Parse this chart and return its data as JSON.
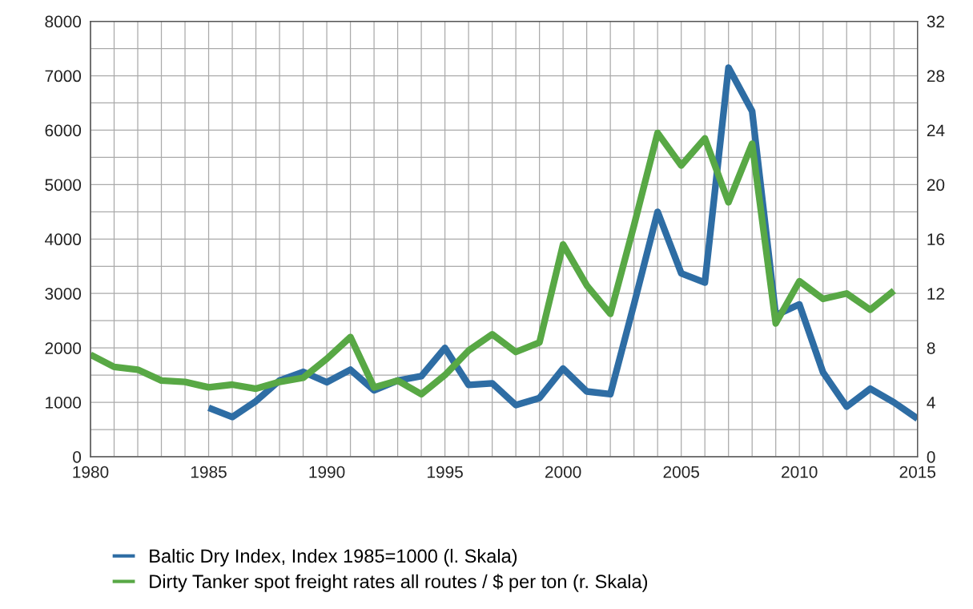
{
  "chart_data": {
    "type": "line",
    "x": [
      1980,
      1981,
      1982,
      1983,
      1984,
      1985,
      1986,
      1987,
      1988,
      1989,
      1990,
      1991,
      1992,
      1993,
      1994,
      1995,
      1996,
      1997,
      1998,
      1999,
      2000,
      2001,
      2002,
      2003,
      2004,
      2005,
      2006,
      2007,
      2008,
      2009,
      2010,
      2011,
      2012,
      2013,
      2014,
      2015
    ],
    "series": [
      {
        "name": "Baltic Dry Index, Index 1985=1000 (l. Skala)",
        "color": "#2e6da4",
        "values": [
          null,
          null,
          null,
          null,
          null,
          900,
          730,
          1020,
          1400,
          1560,
          1370,
          1600,
          1220,
          1400,
          1480,
          2000,
          1320,
          1350,
          950,
          1080,
          1620,
          1200,
          1150,
          2800,
          4500,
          3370,
          3200,
          7150,
          6350,
          2600,
          2800,
          1550,
          920,
          1250,
          1000,
          700
        ]
      },
      {
        "name": "Dirty Tanker spot freight rates all routes / $ per ton (r. Skala)",
        "color": "#58a845",
        "axis": "y2",
        "values": [
          7.5,
          6.6,
          6.4,
          5.6,
          5.5,
          5.1,
          5.3,
          5.0,
          5.5,
          5.8,
          7.2,
          8.8,
          5.1,
          5.6,
          4.6,
          6.0,
          7.8,
          9.0,
          7.7,
          8.4,
          15.6,
          12.6,
          10.5,
          17.0,
          23.8,
          21.4,
          23.4,
          18.7,
          23.0,
          9.8,
          12.9,
          11.6,
          12.0,
          10.8,
          12.2,
          null
        ]
      }
    ],
    "xlim": [
      1980,
      2015
    ],
    "xticks": [
      1980,
      {
        "value": 1981,
        "label": null
      },
      {
        "value": 1982,
        "label": null
      },
      {
        "value": 1983,
        "label": null
      },
      {
        "value": 1984,
        "label": null
      },
      1985,
      {
        "value": 1986,
        "label": null
      },
      {
        "value": 1987,
        "label": null
      },
      {
        "value": 1988,
        "label": null
      },
      {
        "value": 1989,
        "label": null
      },
      1990,
      {
        "value": 1991,
        "label": null
      },
      {
        "value": 1992,
        "label": null
      },
      {
        "value": 1993,
        "label": null
      },
      {
        "value": 1994,
        "label": null
      },
      1995,
      {
        "value": 1996,
        "label": null
      },
      {
        "value": 1997,
        "label": null
      },
      {
        "value": 1998,
        "label": null
      },
      {
        "value": 1999,
        "label": null
      },
      2000,
      {
        "value": 2001,
        "label": null
      },
      {
        "value": 2002,
        "label": null
      },
      {
        "value": 2003,
        "label": null
      },
      {
        "value": 2004,
        "label": null
      },
      2005,
      {
        "value": 2006,
        "label": null
      },
      {
        "value": 2007,
        "label": null
      },
      {
        "value": 2008,
        "label": null
      },
      {
        "value": 2009,
        "label": null
      },
      2010,
      {
        "value": 2011,
        "label": null
      },
      {
        "value": 2012,
        "label": null
      },
      {
        "value": 2013,
        "label": null
      },
      {
        "value": 2014,
        "label": null
      },
      2015
    ],
    "ylim": [
      0,
      8000
    ],
    "yticks": [
      0,
      {
        "value": 500,
        "label": null
      },
      1000,
      {
        "value": 1500,
        "label": null
      },
      2000,
      {
        "value": 2500,
        "label": null
      },
      3000,
      {
        "value": 3500,
        "label": null
      },
      4000,
      {
        "value": 4500,
        "label": null
      },
      5000,
      {
        "value": 5500,
        "label": null
      },
      6000,
      {
        "value": 6500,
        "label": null
      },
      7000,
      {
        "value": 7500,
        "label": null
      },
      8000
    ],
    "y2lim": [
      0,
      32
    ],
    "y2ticks": [
      0,
      4,
      8,
      12,
      16,
      20,
      24,
      28,
      32
    ],
    "grid": true,
    "legend": "bottom",
    "marker": "none",
    "line_style": "solid"
  }
}
